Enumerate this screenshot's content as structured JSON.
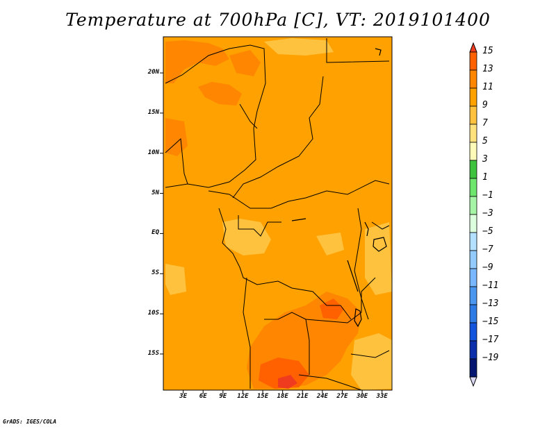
{
  "title": "Temperature at 700hPa [C], VT: 2019101400",
  "footer": "GrADS: IGES/COLA",
  "map": {
    "projection": "lat-lon",
    "lon_range": [
      0,
      34.5
    ],
    "lat_range": [
      -19.5,
      24.5
    ],
    "y_ticks": [
      {
        "label": "20N",
        "lat": 20
      },
      {
        "label": "15N",
        "lat": 15
      },
      {
        "label": "10N",
        "lat": 10
      },
      {
        "label": "5N",
        "lat": 5
      },
      {
        "label": "EQ",
        "lat": 0
      },
      {
        "label": "5S",
        "lat": -5
      },
      {
        "label": "10S",
        "lat": -10
      },
      {
        "label": "15S",
        "lat": -15
      }
    ],
    "x_ticks": [
      {
        "label": "3E",
        "lon": 3
      },
      {
        "label": "6E",
        "lon": 6
      },
      {
        "label": "9E",
        "lon": 9
      },
      {
        "label": "12E",
        "lon": 12
      },
      {
        "label": "15E",
        "lon": 15
      },
      {
        "label": "18E",
        "lon": 18
      },
      {
        "label": "21E",
        "lon": 21
      },
      {
        "label": "24E",
        "lon": 24
      },
      {
        "label": "27E",
        "lon": 27
      },
      {
        "label": "30E",
        "lon": 30
      },
      {
        "label": "33E",
        "lon": 33
      }
    ],
    "base_color": "#ffa100"
  },
  "colorbar": {
    "labels": [
      "15",
      "13",
      "11",
      "9",
      "7",
      "5",
      "3",
      "1",
      "−1",
      "−3",
      "−5",
      "−7",
      "−9",
      "−11",
      "−13",
      "−15",
      "−17",
      "−19"
    ],
    "colors": [
      "#f03c1e",
      "#ff6000",
      "#ff8600",
      "#ffa100",
      "#ffc23f",
      "#ffe27e",
      "#fffcb9",
      "#3fc33f",
      "#6ee66e",
      "#a6f5a6",
      "#ddffdd",
      "#b3e1ff",
      "#93cbff",
      "#79b7ff",
      "#4b97f0",
      "#2f7be6",
      "#1354dc",
      "#0b2faa",
      "#041670",
      "#d8d8f2"
    ]
  }
}
